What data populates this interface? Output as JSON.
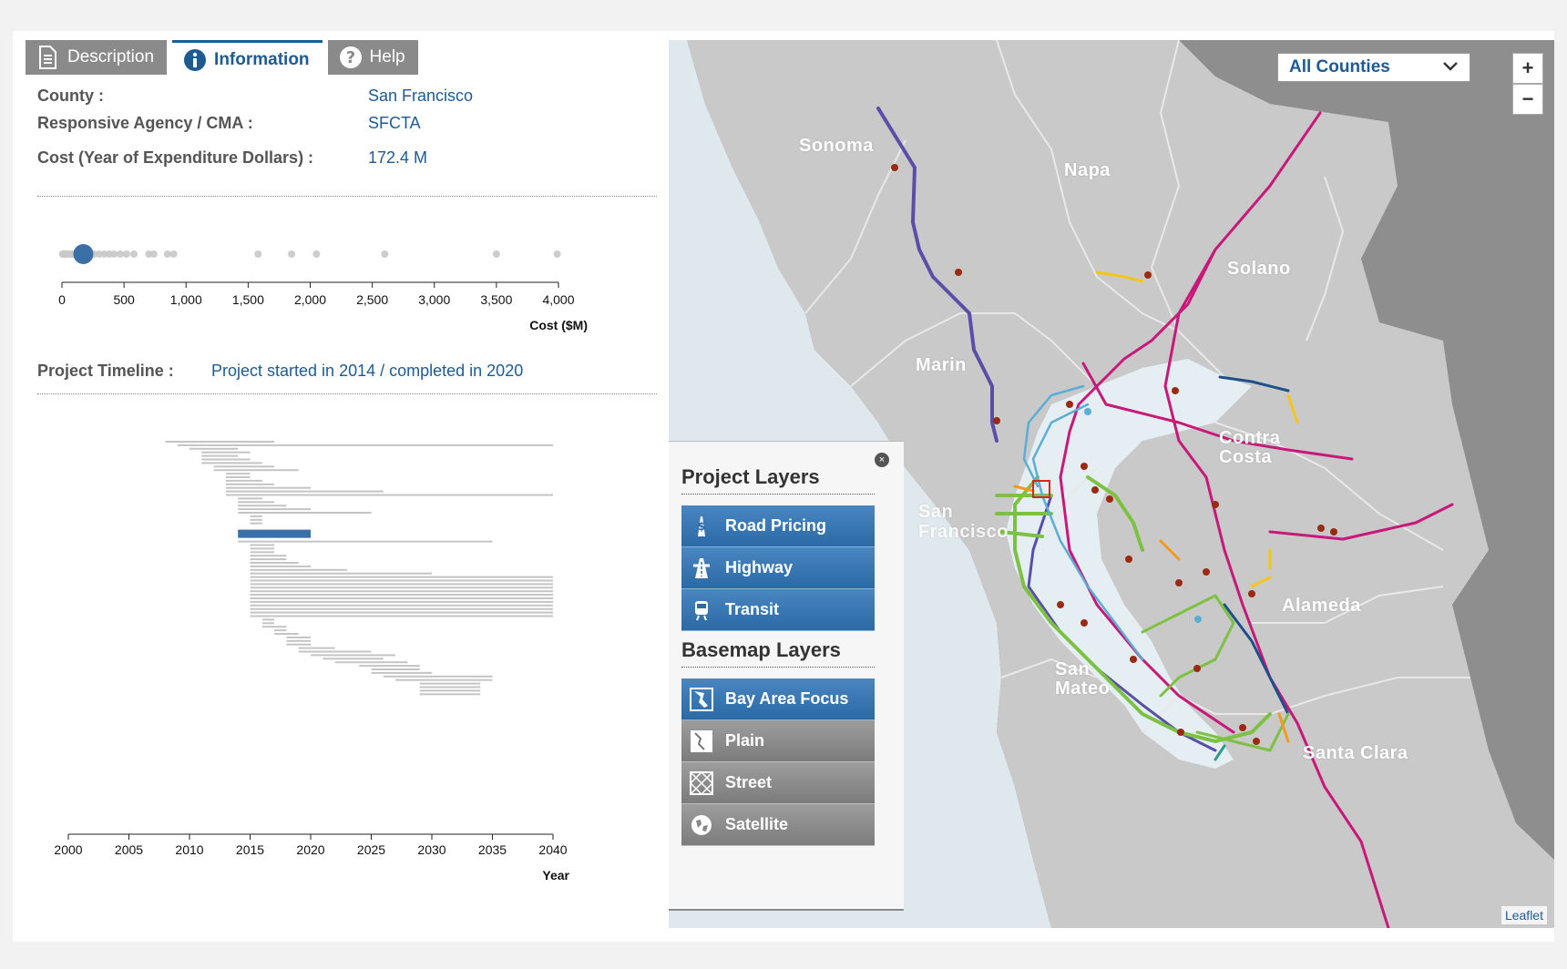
{
  "tabs": [
    {
      "label": "Description",
      "icon": "document-icon",
      "active": false
    },
    {
      "label": "Information",
      "icon": "info-icon",
      "active": true
    },
    {
      "label": "Help",
      "icon": "help-icon",
      "active": false
    }
  ],
  "info": {
    "county_label": "County :",
    "county_value": "San Francisco",
    "agency_label": "Responsive Agency / CMA :",
    "agency_value": "SFCTA",
    "cost_label": "Cost (Year of Expenditure Dollars) :",
    "cost_value": "172.4 M"
  },
  "cost_chart": {
    "type": "scatter",
    "xlabel": "Cost ($M)",
    "xlim": [
      0,
      4000
    ],
    "ticks": [
      "0",
      "500",
      "1,000",
      "1,500",
      "2,000",
      "2,500",
      "3,000",
      "3,500",
      "4,000"
    ],
    "tick_values": [
      0,
      500,
      1000,
      1500,
      2000,
      2500,
      3000,
      3500,
      4000
    ],
    "other_projects": [
      5,
      15,
      25,
      40,
      55,
      70,
      90,
      110,
      130,
      150,
      180,
      220,
      260,
      300,
      340,
      380,
      420,
      470,
      520,
      580,
      700,
      740,
      850,
      900,
      1580,
      1850,
      2050,
      2600,
      3500,
      3990
    ],
    "selected": 172.4,
    "colors": {
      "selected": "#3a6fa8",
      "other": "#c8c8c8"
    }
  },
  "timeline": {
    "label": "Project Timeline :",
    "value": "Project started in 2014 / completed in 2020",
    "xlabel": "Year",
    "xlim": [
      2000,
      2040
    ],
    "ticks": [
      "2000",
      "2005",
      "2010",
      "2015",
      "2020",
      "2025",
      "2030",
      "2035",
      "2040"
    ],
    "tick_values": [
      2000,
      2005,
      2010,
      2015,
      2020,
      2025,
      2030,
      2035,
      2040
    ],
    "selected": {
      "start": 2014,
      "end": 2020
    },
    "colors": {
      "selected": "#3a6fa8",
      "other": "#c4c4c4"
    }
  },
  "map": {
    "county_select": "All Counties",
    "zoom_in": "+",
    "zoom_out": "−",
    "attribution": "Leaflet",
    "county_labels": {
      "sonoma": "Sonoma",
      "napa": "Napa",
      "solano": "Solano",
      "marin": "Marin",
      "contra_costa_1": "Contra",
      "contra_costa_2": "Costa",
      "san_francisco_1": "San",
      "san_francisco_2": "Francisco",
      "alameda": "Alameda",
      "san_mateo_1": "San",
      "san_mateo_2": "Mateo",
      "santa_clara": "Santa Clara"
    },
    "colors": {
      "land": "#c9c9c9",
      "water": "#dfe8ec",
      "outer": "#8e8e8e",
      "transit": "#c8187a",
      "rail": "#5a4fa8",
      "road": "#7cc142",
      "bart": "#5aaed6",
      "yellow": "#f5c518",
      "orange": "#f39a1e",
      "dot": "#9b2a12"
    }
  },
  "layers_panel": {
    "close": "×",
    "project_title": "Project Layers",
    "basemap_title": "Basemap Layers",
    "project_layers": [
      {
        "label": "Road Pricing",
        "icon": "dollar-road-icon"
      },
      {
        "label": "Highway",
        "icon": "highway-icon"
      },
      {
        "label": "Transit",
        "icon": "train-icon"
      }
    ],
    "basemap_layers": [
      {
        "label": "Bay Area Focus",
        "icon": "bay-area-icon",
        "active": true
      },
      {
        "label": "Plain",
        "icon": "plain-map-icon",
        "active": false
      },
      {
        "label": "Street",
        "icon": "street-map-icon",
        "active": false
      },
      {
        "label": "Satellite",
        "icon": "globe-icon",
        "active": false
      }
    ]
  }
}
